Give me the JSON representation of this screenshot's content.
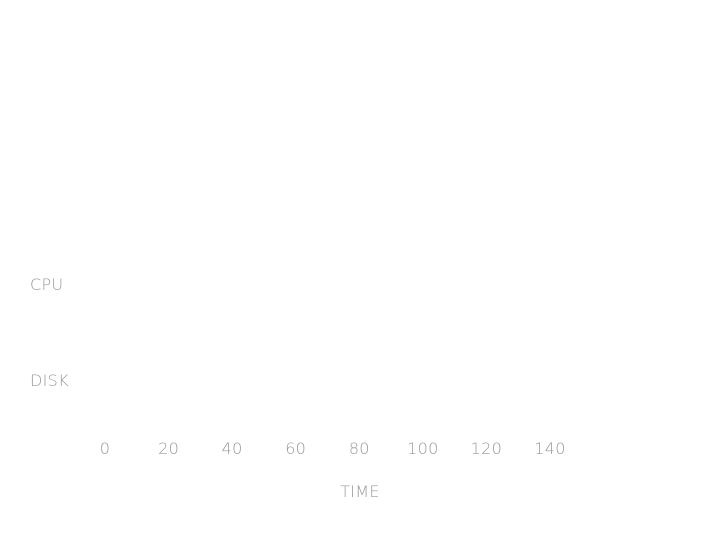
{
  "chart_data": {
    "type": "timeline",
    "title": "",
    "xlabel": "TIME",
    "ylabel": "",
    "rows": [
      "CPU",
      "DISK"
    ],
    "x_ticks": [
      0,
      20,
      40,
      60,
      80,
      100,
      120,
      140
    ],
    "xlim": [
      0,
      140
    ],
    "grid": false,
    "series": []
  }
}
